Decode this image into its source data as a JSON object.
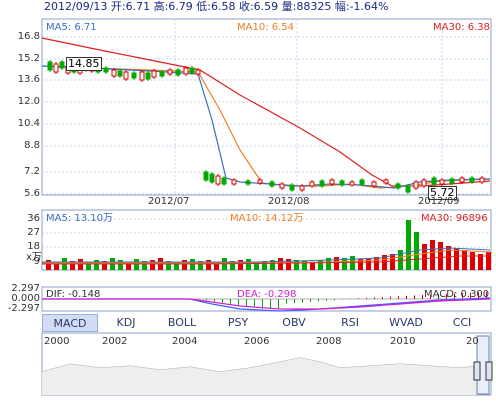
{
  "header": {
    "quote": "2012/09/13 开:6.71 高:6.79 低:6.58 收:6.59 量:88325 幅:-1.64%"
  },
  "price_panel": {
    "ma5": "MA5: 6.71",
    "ma10": "MA10: 6.54",
    "ma30": "MA30: 6.38",
    "y_ticks": [
      "16.8",
      "15.2",
      "13.6",
      "12.0",
      "10.4",
      "8.8",
      "7.2",
      "5.6"
    ],
    "x_ticks": [
      "2012/07",
      "2012/08",
      "2012/09"
    ],
    "high_marker": "14.85",
    "low_marker": "5.72"
  },
  "volume_panel": {
    "ma5": "MA5: 13.10万",
    "ma10": "MA10: 14.12万",
    "ma30": "MA30: 96896",
    "y_ticks": [
      "36",
      "27",
      "18",
      "9"
    ],
    "unit": "x万"
  },
  "macd_panel": {
    "dif": "DIF: -0.148",
    "dea": "DEA: -0.298",
    "macd": "MACD: 0.300",
    "y_ticks": [
      "2.297",
      "0.000",
      "-2.297"
    ]
  },
  "tabs": [
    "MACD",
    "KDJ",
    "BOLL",
    "PSY",
    "OBV",
    "RSI",
    "WVAD",
    "CCI"
  ],
  "active_tab": "MACD",
  "timeline": {
    "years": [
      "2000",
      "2002",
      "2004",
      "2006",
      "2008",
      "2010",
      "20"
    ]
  },
  "colors": {
    "up": "#e00000",
    "down": "#00aa00",
    "ma5": "#3a6fc0",
    "ma10": "#f08020",
    "ma30": "#e02020",
    "dif": "#4060ff",
    "dea": "#d020d0",
    "grid": "#c8d4ec",
    "frame": "#8da0c8"
  }
}
